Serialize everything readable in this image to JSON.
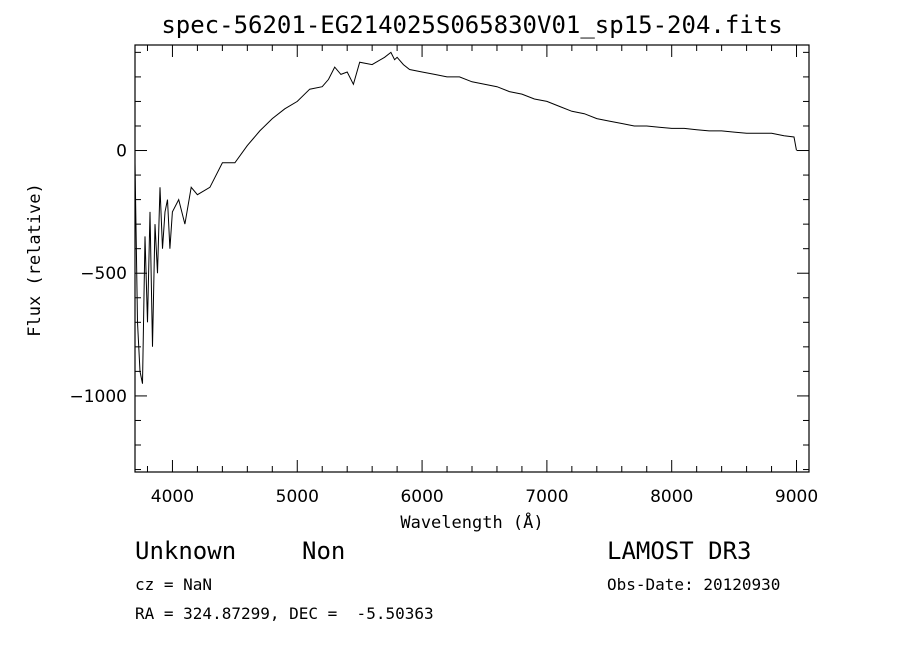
{
  "chart_data": {
    "type": "line",
    "title": "spec-56201-EG214025S065830V01_sp15-204.fits",
    "xlabel": "Wavelength (Å)",
    "ylabel": "Flux (relative)",
    "xlim": [
      3700,
      9100
    ],
    "ylim": [
      -1310,
      430
    ],
    "xticks": [
      4000,
      5000,
      6000,
      7000,
      8000,
      9000
    ],
    "yticks": [
      0,
      -500,
      -1000
    ],
    "grid": false,
    "series": [
      {
        "x": [
          3700,
          3720,
          3740,
          3760,
          3780,
          3800,
          3820,
          3840,
          3860,
          3880,
          3900,
          3920,
          3940,
          3960,
          3980,
          4000,
          4050,
          4100,
          4150,
          4200,
          4300,
          4400,
          4500,
          4600,
          4700,
          4800,
          4900,
          5000,
          5100,
          5200,
          5250,
          5300,
          5350,
          5400,
          5450,
          5500,
          5600,
          5700,
          5750,
          5780,
          5800,
          5850,
          5900,
          6000,
          6100,
          6200,
          6300,
          6400,
          6500,
          6600,
          6700,
          6800,
          6900,
          7000,
          7100,
          7200,
          7300,
          7400,
          7500,
          7600,
          7700,
          7800,
          7900,
          8000,
          8100,
          8200,
          8300,
          8400,
          8500,
          8600,
          8700,
          8800,
          8900,
          8980,
          9000
        ],
        "y": [
          -50,
          -700,
          -900,
          -950,
          -350,
          -700,
          -250,
          -800,
          -300,
          -500,
          -150,
          -400,
          -250,
          -200,
          -400,
          -250,
          -200,
          -300,
          -150,
          -180,
          -150,
          -50,
          -50,
          20,
          80,
          130,
          170,
          200,
          250,
          260,
          290,
          340,
          310,
          320,
          270,
          360,
          350,
          380,
          400,
          370,
          380,
          350,
          330,
          320,
          310,
          300,
          300,
          280,
          270,
          260,
          240,
          230,
          210,
          200,
          180,
          160,
          150,
          130,
          120,
          110,
          100,
          100,
          95,
          90,
          90,
          85,
          80,
          80,
          75,
          70,
          70,
          70,
          60,
          55,
          0
        ]
      }
    ]
  },
  "info": {
    "object_class": "Unknown",
    "object_subclass": "Non",
    "survey": "LAMOST DR3",
    "cz": "cz = NaN",
    "obs_date": "Obs-Date: 20120930",
    "coords": "RA = 324.87299, DEC =  -5.50363"
  }
}
